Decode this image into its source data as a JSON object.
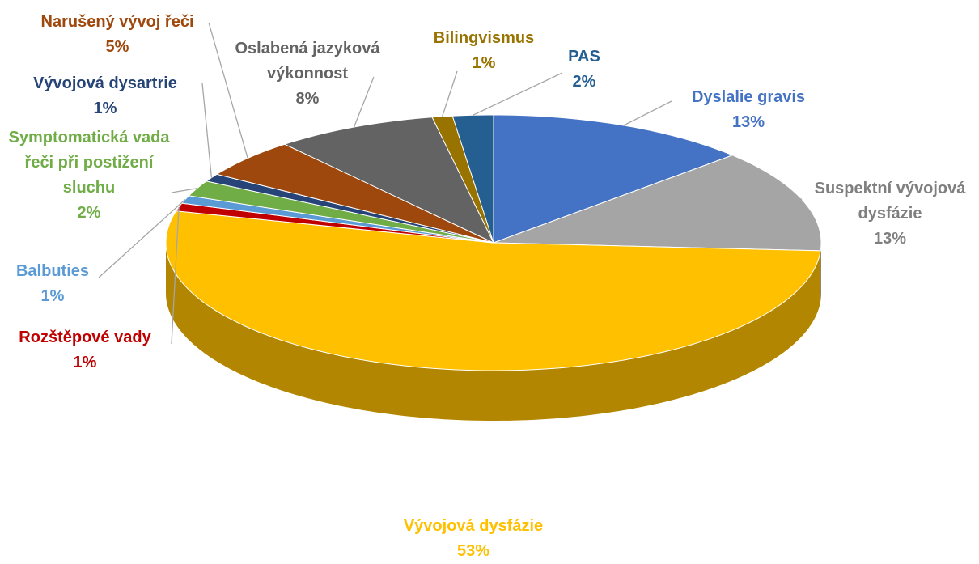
{
  "chart_data": {
    "type": "pie",
    "categories": [
      "Dyslalie gravis",
      "Suspektní vývojová dysfázie",
      "Vývojová dysfázie",
      "Rozštěpové vady",
      "Balbuties",
      "Symptomatická vada řeči při postižení sluchu",
      "Vývojová dysartrie",
      "Narušený vývoj řeči",
      "Oslabená jazyková výkonnost",
      "Bilingvismus",
      "PAS"
    ],
    "values": [
      13,
      13,
      53,
      1,
      1,
      2,
      1,
      5,
      8,
      1,
      2
    ],
    "value_labels": [
      "13%",
      "13%",
      "53%",
      "1%",
      "1%",
      "2%",
      "1%",
      "5%",
      "8%",
      "1%",
      "2%"
    ],
    "colors": [
      "#4472c4",
      "#a5a5a5",
      "#ffc000",
      "#c00000",
      "#5b9bd5",
      "#70ad47",
      "#264478",
      "#9e480e",
      "#636363",
      "#997300",
      "#255e91"
    ]
  }
}
